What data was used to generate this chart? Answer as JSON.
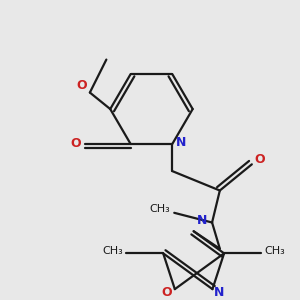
{
  "bg_color": "#e8e8e8",
  "bond_color": "#1a1a1a",
  "N_color": "#2222cc",
  "O_color": "#cc2222",
  "line_width": 1.6,
  "font_size": 8.5,
  "figsize": [
    3.0,
    3.0
  ],
  "dpi": 100,
  "xlim": [
    0,
    3.0
  ],
  "ylim": [
    0,
    3.0
  ]
}
